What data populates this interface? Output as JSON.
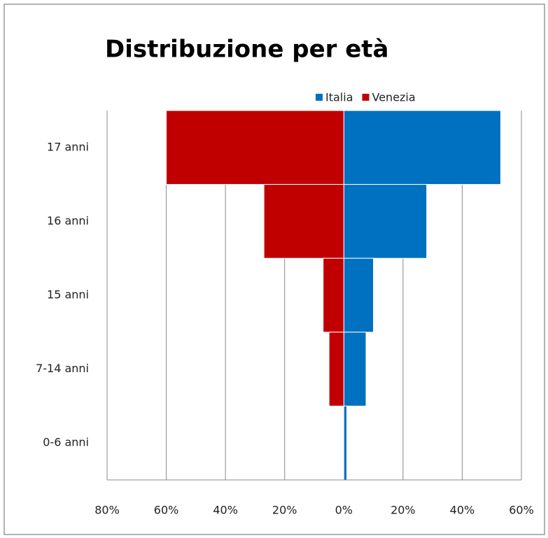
{
  "chart_data": {
    "type": "bar",
    "orientation": "horizontal",
    "title": "Distribuzione per età",
    "categories": [
      "17 anni",
      "16 anni",
      "15 anni",
      "7-14 anni",
      "0-6 anni"
    ],
    "series": [
      {
        "name": "Italia",
        "color": "#0070c0",
        "values": [
          53,
          28,
          10,
          7.5,
          1
        ]
      },
      {
        "name": "Venezia",
        "color": "#c00000",
        "values": [
          -60,
          -27,
          -7,
          -5,
          0
        ]
      }
    ],
    "xlim": [
      -80,
      60
    ],
    "xticks": [
      {
        "value": -80,
        "label": "80%"
      },
      {
        "value": -60,
        "label": "60%"
      },
      {
        "value": -40,
        "label": "40%"
      },
      {
        "value": -20,
        "label": "20%"
      },
      {
        "value": 0,
        "label": "0%"
      },
      {
        "value": 20,
        "label": "20%"
      },
      {
        "value": 40,
        "label": "40%"
      },
      {
        "value": 60,
        "label": "60%"
      }
    ],
    "grid": true,
    "legend": "top-right"
  }
}
